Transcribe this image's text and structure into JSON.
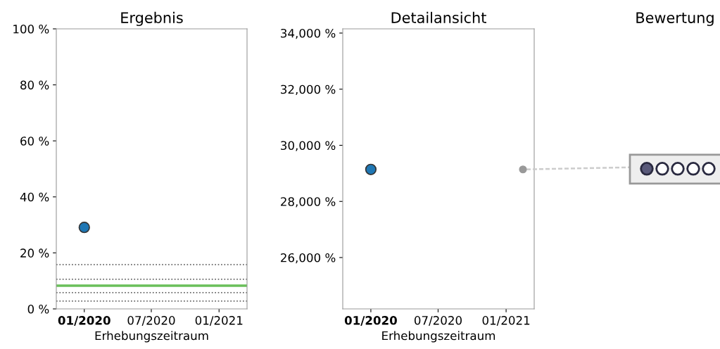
{
  "chart_data": [
    {
      "type": "scatter",
      "title": "Ergebnis",
      "xlabel": "Erhebungszeitraum",
      "x": [
        "2020-01-01"
      ],
      "series": [
        {
          "color": "#1f77b4",
          "values": [
            29.1
          ]
        }
      ],
      "xlim": [
        "2019-10-17",
        "2021-03-18"
      ],
      "xticks": [
        {
          "value": "2020-01-01",
          "label": "01/2020"
        },
        {
          "value": "2020-07-01",
          "label": "07/2020"
        },
        {
          "value": "2021-01-01",
          "label": "01/2021"
        }
      ],
      "ylim": [
        0,
        100
      ],
      "yticks": [
        {
          "value": 0,
          "label": "0 %"
        },
        {
          "value": 20,
          "label": "20 %"
        },
        {
          "value": 40,
          "label": "40 %"
        },
        {
          "value": 60,
          "label": "60 %"
        },
        {
          "value": 80,
          "label": "80 %"
        },
        {
          "value": 100,
          "label": "100 %"
        }
      ],
      "ref_lines": [
        {
          "axis": "y",
          "value": 15.8,
          "color": "#666666",
          "line_style": "dotted"
        },
        {
          "axis": "y",
          "value": 10.6,
          "color": "#666666",
          "line_style": "dotted"
        },
        {
          "axis": "y",
          "value": 8.3,
          "color": "#6abf5a",
          "line_style": "solid"
        },
        {
          "axis": "y",
          "value": 5.8,
          "color": "#666666",
          "line_style": "dotted"
        },
        {
          "axis": "y",
          "value": 2.8,
          "color": "#666666",
          "line_style": "dotted"
        }
      ],
      "marker": "circle",
      "grid": false,
      "legend": false
    },
    {
      "type": "scatter",
      "title": "Detailansicht",
      "xlabel": "Erhebungszeitraum",
      "x": [
        "2020-01-01"
      ],
      "series": [
        {
          "color": "#1f77b4",
          "values": [
            29140
          ]
        }
      ],
      "xlim": [
        "2019-10-17",
        "2021-03-18"
      ],
      "xticks": [
        {
          "value": "2020-01-01",
          "label": "01/2020"
        },
        {
          "value": "2020-07-01",
          "label": "07/2020"
        },
        {
          "value": "2021-01-01",
          "label": "01/2021"
        }
      ],
      "ylim": [
        24170,
        34150
      ],
      "yticks": [
        {
          "value": 26000,
          "label": "26,000 %"
        },
        {
          "value": 28000,
          "label": "28,000 %"
        },
        {
          "value": 30000,
          "label": "30,000 %"
        },
        {
          "value": 32000,
          "label": "32,000 %"
        },
        {
          "value": 34000,
          "label": "34,000 %"
        }
      ],
      "marker": "circle",
      "grid": false,
      "legend": false
    },
    {
      "type": "other",
      "title": "Bewertung"
    }
  ]
}
